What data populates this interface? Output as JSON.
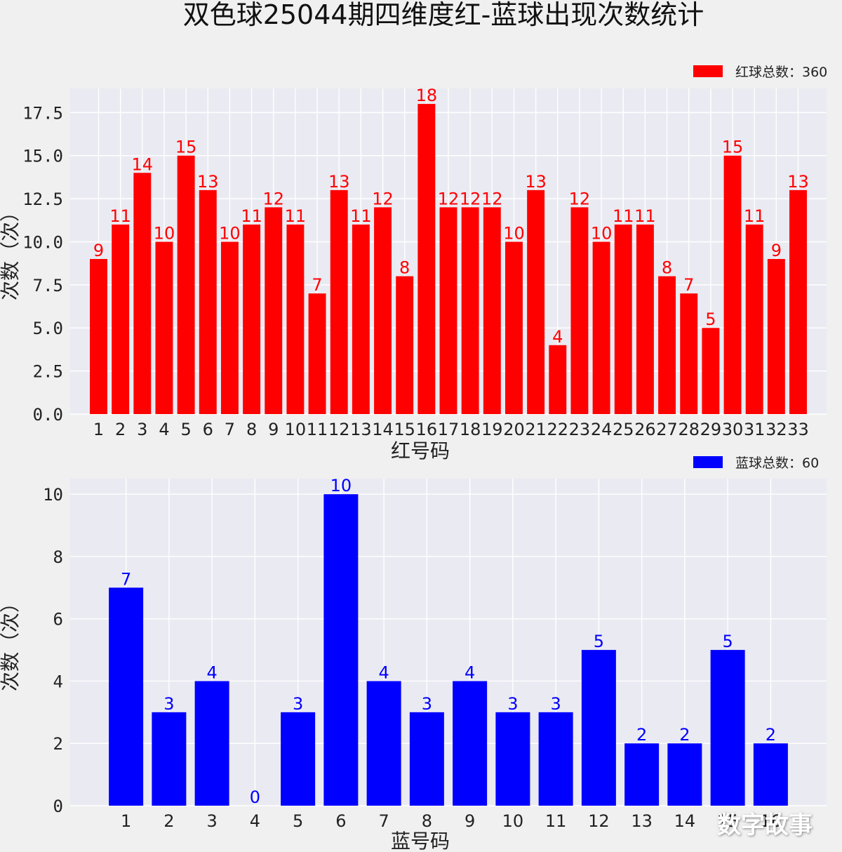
{
  "title": "双色球25044期四维度红-蓝球出现次数统计",
  "watermark": "数字故事",
  "chart_data": [
    {
      "type": "bar",
      "panel": "red",
      "color": "#ff0000",
      "legend": "红球总数：360",
      "legend_position": "top-right",
      "xlabel": "红号码",
      "ylabel": "次数（次）",
      "ylim": [
        0,
        18.9
      ],
      "yticks": [
        "0.0",
        "2.5",
        "5.0",
        "7.5",
        "10.0",
        "12.5",
        "15.0",
        "17.5"
      ],
      "ytick_values": [
        0,
        2.5,
        5,
        7.5,
        10,
        12.5,
        15,
        17.5
      ],
      "categories": [
        "1",
        "2",
        "3",
        "4",
        "5",
        "6",
        "7",
        "8",
        "9",
        "10",
        "11",
        "12",
        "13",
        "14",
        "15",
        "16",
        "17",
        "18",
        "19",
        "20",
        "21",
        "22",
        "23",
        "24",
        "25",
        "26",
        "27",
        "28",
        "29",
        "30",
        "31",
        "32",
        "33"
      ],
      "values": [
        9,
        11,
        14,
        10,
        15,
        13,
        10,
        11,
        12,
        11,
        7,
        13,
        11,
        12,
        8,
        18,
        12,
        12,
        12,
        10,
        13,
        4,
        12,
        10,
        11,
        11,
        8,
        7,
        5,
        15,
        11,
        9,
        13
      ],
      "labels": [
        "9",
        "11",
        "14",
        "10",
        "15",
        "13",
        "10",
        "11",
        "12",
        "11",
        "7",
        "13",
        "11",
        "12",
        "8",
        "18",
        "12",
        "12",
        "12",
        "10",
        "13",
        "4",
        "12",
        "10",
        "11",
        "11",
        "8",
        "7",
        "5",
        "15",
        "11",
        "9",
        "13"
      ],
      "grid": true
    },
    {
      "type": "bar",
      "panel": "blue",
      "color": "#0000ff",
      "legend": "蓝球总数：60",
      "legend_position": "top-right",
      "xlabel": "蓝号码",
      "ylabel": "次数（次）",
      "ylim": [
        0,
        10.5
      ],
      "yticks": [
        "0",
        "2",
        "4",
        "6",
        "8",
        "10"
      ],
      "ytick_values": [
        0,
        2,
        4,
        6,
        8,
        10
      ],
      "categories": [
        "1",
        "2",
        "3",
        "4",
        "5",
        "6",
        "7",
        "8",
        "9",
        "10",
        "11",
        "12",
        "13",
        "14",
        "15",
        "16"
      ],
      "values": [
        7,
        3,
        4,
        0,
        3,
        10,
        4,
        3,
        4,
        3,
        3,
        5,
        2,
        2,
        5,
        2
      ],
      "labels": [
        "7",
        "3",
        "4",
        "0",
        "3",
        "10",
        "4",
        "3",
        "4",
        "3",
        "3",
        "5",
        "2",
        "2",
        "5",
        "2"
      ],
      "grid": true
    }
  ]
}
